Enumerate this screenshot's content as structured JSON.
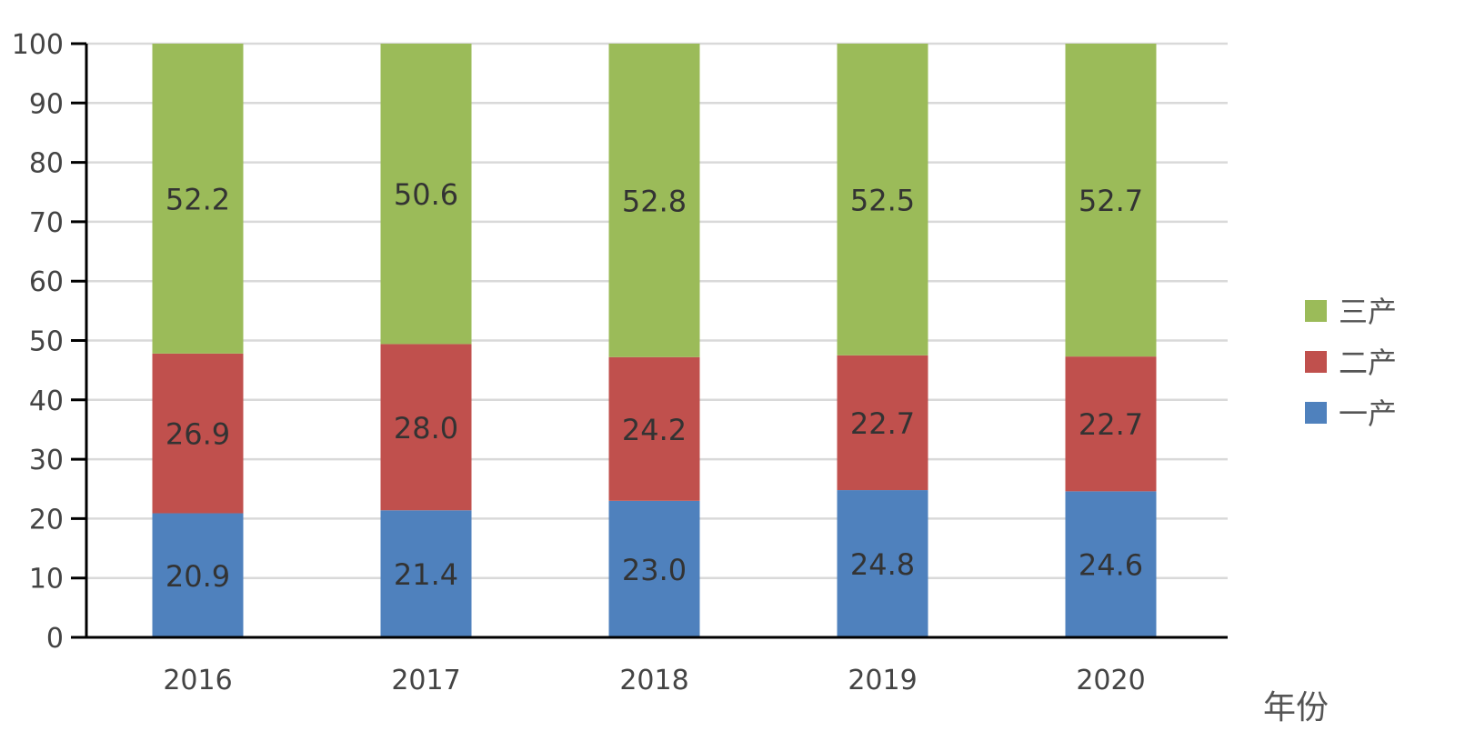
{
  "chart_data": {
    "type": "bar",
    "stacked": true,
    "categories": [
      "2016",
      "2017",
      "2018",
      "2019",
      "2020"
    ],
    "series": [
      {
        "name": "一产",
        "color": "#4f81bd",
        "values": [
          20.9,
          21.4,
          23.0,
          24.8,
          24.6
        ]
      },
      {
        "name": "二产",
        "color": "#c0504d",
        "values": [
          26.9,
          28.0,
          24.2,
          22.7,
          22.7
        ]
      },
      {
        "name": "三产",
        "color": "#9bbb59",
        "values": [
          52.2,
          50.6,
          52.8,
          52.5,
          52.7
        ]
      }
    ],
    "xlabel": "年份",
    "ylabel": "",
    "ylim": [
      0,
      100
    ],
    "yticks": [
      0,
      10,
      20,
      30,
      40,
      50,
      60,
      70,
      80,
      90,
      100
    ],
    "grid": true,
    "legend_position": "right",
    "legend_order": [
      "三产",
      "二产",
      "一产"
    ],
    "gridline_color": "#d9d9d9",
    "axis_color": "#000000"
  }
}
